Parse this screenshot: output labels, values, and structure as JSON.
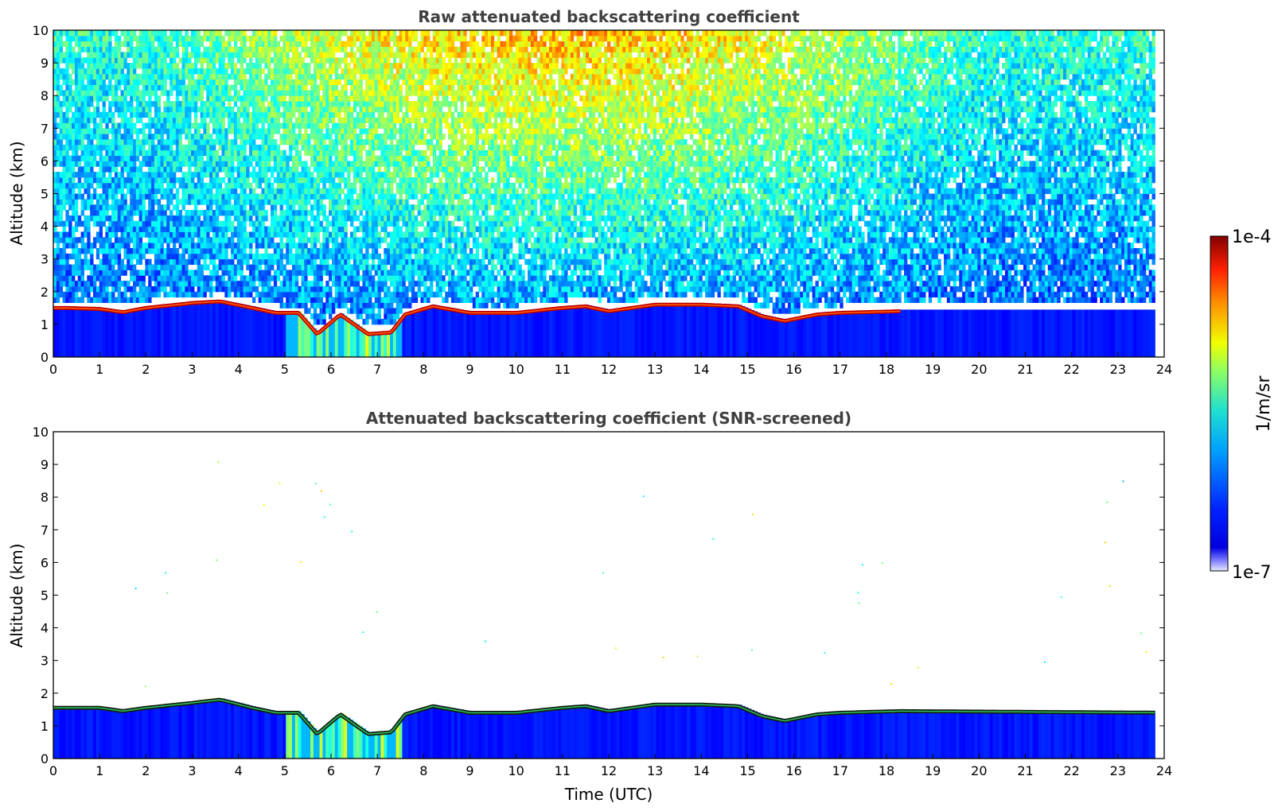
{
  "chart_data": [
    {
      "type": "heatmap",
      "title": "Raw attenuated backscattering coefficient",
      "xlabel": "",
      "ylabel": "Altitude (km)",
      "xlim": [
        0,
        24
      ],
      "ylim": [
        0,
        10
      ],
      "x_ticks": [
        0,
        1,
        2,
        3,
        4,
        5,
        6,
        7,
        8,
        9,
        10,
        11,
        12,
        13,
        14,
        15,
        16,
        17,
        18,
        19,
        20,
        21,
        22,
        23,
        24
      ],
      "y_ticks": [
        0,
        1,
        2,
        3,
        4,
        5,
        6,
        7,
        8,
        9,
        10
      ],
      "data_end_hour": 23.8,
      "boundary_layer_top_km": {
        "x": [
          0.3,
          1.0,
          1.5,
          2.0,
          3.0,
          3.6,
          4.3,
          4.8,
          5.3,
          5.7,
          6.2,
          6.8,
          7.3,
          7.6,
          8.2,
          9.0,
          10.0,
          11.0,
          11.5,
          12.0,
          12.5,
          13.0,
          14.0,
          14.8,
          15.3,
          15.8,
          16.5,
          17.0,
          18.3
        ],
        "y": [
          1.55,
          1.52,
          1.42,
          1.55,
          1.7,
          1.75,
          1.55,
          1.4,
          1.4,
          0.75,
          1.35,
          0.75,
          0.8,
          1.35,
          1.6,
          1.4,
          1.4,
          1.55,
          1.6,
          1.45,
          1.55,
          1.65,
          1.65,
          1.6,
          1.3,
          1.15,
          1.35,
          1.4,
          1.45
        ]
      },
      "noise_level": "high aloft (daytime solar background, peak near 11 UTC)"
    },
    {
      "type": "heatmap",
      "title": "Attenuated backscattering coefficient (SNR-screened)",
      "xlabel": "Time (UTC)",
      "ylabel": "Altitude (km)",
      "xlim": [
        0,
        24
      ],
      "ylim": [
        0,
        10
      ],
      "x_ticks": [
        0,
        1,
        2,
        3,
        4,
        5,
        6,
        7,
        8,
        9,
        10,
        11,
        12,
        13,
        14,
        15,
        16,
        17,
        18,
        19,
        20,
        21,
        22,
        23,
        24
      ],
      "y_ticks": [
        0,
        1,
        2,
        3,
        4,
        5,
        6,
        7,
        8,
        9,
        10
      ],
      "data_end_hour": 23.8,
      "boundary_layer_top_km": {
        "x": [
          0,
          1.0,
          1.5,
          2.0,
          3.0,
          3.6,
          4.3,
          4.8,
          5.3,
          5.7,
          6.2,
          6.8,
          7.3,
          7.6,
          8.2,
          9.0,
          10.0,
          11.0,
          11.5,
          12.0,
          12.5,
          13.0,
          14.0,
          14.8,
          15.3,
          15.8,
          16.5,
          17.0,
          18.3,
          24
        ],
        "y": [
          1.6,
          1.6,
          1.5,
          1.6,
          1.75,
          1.85,
          1.6,
          1.45,
          1.45,
          0.8,
          1.4,
          0.8,
          0.85,
          1.4,
          1.65,
          1.45,
          1.45,
          1.6,
          1.65,
          1.5,
          1.6,
          1.7,
          1.7,
          1.65,
          1.35,
          1.2,
          1.4,
          1.45,
          1.5,
          1.45
        ]
      }
    }
  ],
  "colorbar": {
    "label": "1/m/sr",
    "max_label": "1e-4",
    "min_label": "1e-7",
    "colormap": "jet"
  }
}
